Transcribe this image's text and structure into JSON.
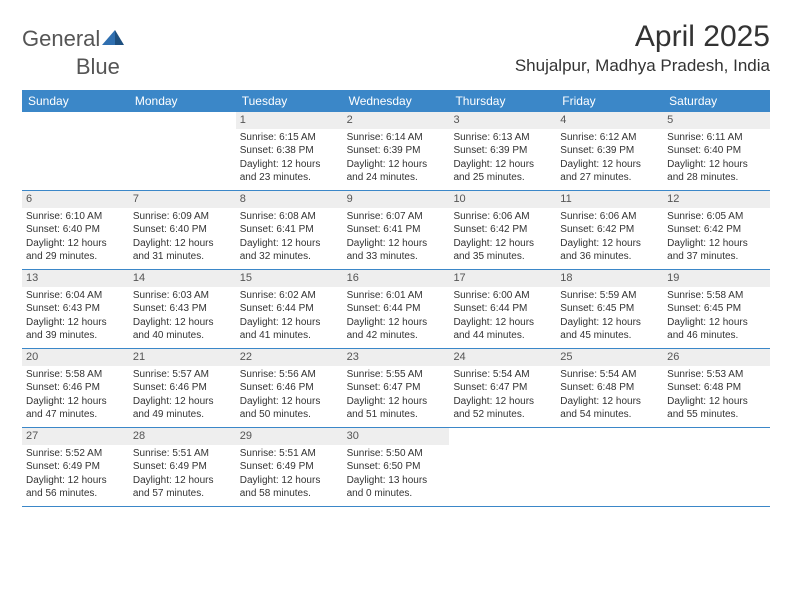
{
  "brand": {
    "part1": "General",
    "part2": "Blue"
  },
  "title": "April 2025",
  "subtitle": "Shujalpur, Madhya Pradesh, India",
  "colors": {
    "header_bg": "#3b87c8",
    "header_text": "#ffffff",
    "daynum_bg": "#eeeeee",
    "border": "#3b87c8",
    "logo_blue": "#2f6fb0"
  },
  "weekdays": [
    "Sunday",
    "Monday",
    "Tuesday",
    "Wednesday",
    "Thursday",
    "Friday",
    "Saturday"
  ],
  "weeks": [
    [
      {
        "n": "",
        "sr": "",
        "ss": "",
        "dl": ""
      },
      {
        "n": "",
        "sr": "",
        "ss": "",
        "dl": ""
      },
      {
        "n": "1",
        "sr": "Sunrise: 6:15 AM",
        "ss": "Sunset: 6:38 PM",
        "dl": "Daylight: 12 hours and 23 minutes."
      },
      {
        "n": "2",
        "sr": "Sunrise: 6:14 AM",
        "ss": "Sunset: 6:39 PM",
        "dl": "Daylight: 12 hours and 24 minutes."
      },
      {
        "n": "3",
        "sr": "Sunrise: 6:13 AM",
        "ss": "Sunset: 6:39 PM",
        "dl": "Daylight: 12 hours and 25 minutes."
      },
      {
        "n": "4",
        "sr": "Sunrise: 6:12 AM",
        "ss": "Sunset: 6:39 PM",
        "dl": "Daylight: 12 hours and 27 minutes."
      },
      {
        "n": "5",
        "sr": "Sunrise: 6:11 AM",
        "ss": "Sunset: 6:40 PM",
        "dl": "Daylight: 12 hours and 28 minutes."
      }
    ],
    [
      {
        "n": "6",
        "sr": "Sunrise: 6:10 AM",
        "ss": "Sunset: 6:40 PM",
        "dl": "Daylight: 12 hours and 29 minutes."
      },
      {
        "n": "7",
        "sr": "Sunrise: 6:09 AM",
        "ss": "Sunset: 6:40 PM",
        "dl": "Daylight: 12 hours and 31 minutes."
      },
      {
        "n": "8",
        "sr": "Sunrise: 6:08 AM",
        "ss": "Sunset: 6:41 PM",
        "dl": "Daylight: 12 hours and 32 minutes."
      },
      {
        "n": "9",
        "sr": "Sunrise: 6:07 AM",
        "ss": "Sunset: 6:41 PM",
        "dl": "Daylight: 12 hours and 33 minutes."
      },
      {
        "n": "10",
        "sr": "Sunrise: 6:06 AM",
        "ss": "Sunset: 6:42 PM",
        "dl": "Daylight: 12 hours and 35 minutes."
      },
      {
        "n": "11",
        "sr": "Sunrise: 6:06 AM",
        "ss": "Sunset: 6:42 PM",
        "dl": "Daylight: 12 hours and 36 minutes."
      },
      {
        "n": "12",
        "sr": "Sunrise: 6:05 AM",
        "ss": "Sunset: 6:42 PM",
        "dl": "Daylight: 12 hours and 37 minutes."
      }
    ],
    [
      {
        "n": "13",
        "sr": "Sunrise: 6:04 AM",
        "ss": "Sunset: 6:43 PM",
        "dl": "Daylight: 12 hours and 39 minutes."
      },
      {
        "n": "14",
        "sr": "Sunrise: 6:03 AM",
        "ss": "Sunset: 6:43 PM",
        "dl": "Daylight: 12 hours and 40 minutes."
      },
      {
        "n": "15",
        "sr": "Sunrise: 6:02 AM",
        "ss": "Sunset: 6:44 PM",
        "dl": "Daylight: 12 hours and 41 minutes."
      },
      {
        "n": "16",
        "sr": "Sunrise: 6:01 AM",
        "ss": "Sunset: 6:44 PM",
        "dl": "Daylight: 12 hours and 42 minutes."
      },
      {
        "n": "17",
        "sr": "Sunrise: 6:00 AM",
        "ss": "Sunset: 6:44 PM",
        "dl": "Daylight: 12 hours and 44 minutes."
      },
      {
        "n": "18",
        "sr": "Sunrise: 5:59 AM",
        "ss": "Sunset: 6:45 PM",
        "dl": "Daylight: 12 hours and 45 minutes."
      },
      {
        "n": "19",
        "sr": "Sunrise: 5:58 AM",
        "ss": "Sunset: 6:45 PM",
        "dl": "Daylight: 12 hours and 46 minutes."
      }
    ],
    [
      {
        "n": "20",
        "sr": "Sunrise: 5:58 AM",
        "ss": "Sunset: 6:46 PM",
        "dl": "Daylight: 12 hours and 47 minutes."
      },
      {
        "n": "21",
        "sr": "Sunrise: 5:57 AM",
        "ss": "Sunset: 6:46 PM",
        "dl": "Daylight: 12 hours and 49 minutes."
      },
      {
        "n": "22",
        "sr": "Sunrise: 5:56 AM",
        "ss": "Sunset: 6:46 PM",
        "dl": "Daylight: 12 hours and 50 minutes."
      },
      {
        "n": "23",
        "sr": "Sunrise: 5:55 AM",
        "ss": "Sunset: 6:47 PM",
        "dl": "Daylight: 12 hours and 51 minutes."
      },
      {
        "n": "24",
        "sr": "Sunrise: 5:54 AM",
        "ss": "Sunset: 6:47 PM",
        "dl": "Daylight: 12 hours and 52 minutes."
      },
      {
        "n": "25",
        "sr": "Sunrise: 5:54 AM",
        "ss": "Sunset: 6:48 PM",
        "dl": "Daylight: 12 hours and 54 minutes."
      },
      {
        "n": "26",
        "sr": "Sunrise: 5:53 AM",
        "ss": "Sunset: 6:48 PM",
        "dl": "Daylight: 12 hours and 55 minutes."
      }
    ],
    [
      {
        "n": "27",
        "sr": "Sunrise: 5:52 AM",
        "ss": "Sunset: 6:49 PM",
        "dl": "Daylight: 12 hours and 56 minutes."
      },
      {
        "n": "28",
        "sr": "Sunrise: 5:51 AM",
        "ss": "Sunset: 6:49 PM",
        "dl": "Daylight: 12 hours and 57 minutes."
      },
      {
        "n": "29",
        "sr": "Sunrise: 5:51 AM",
        "ss": "Sunset: 6:49 PM",
        "dl": "Daylight: 12 hours and 58 minutes."
      },
      {
        "n": "30",
        "sr": "Sunrise: 5:50 AM",
        "ss": "Sunset: 6:50 PM",
        "dl": "Daylight: 13 hours and 0 minutes."
      },
      {
        "n": "",
        "sr": "",
        "ss": "",
        "dl": ""
      },
      {
        "n": "",
        "sr": "",
        "ss": "",
        "dl": ""
      },
      {
        "n": "",
        "sr": "",
        "ss": "",
        "dl": ""
      }
    ]
  ]
}
